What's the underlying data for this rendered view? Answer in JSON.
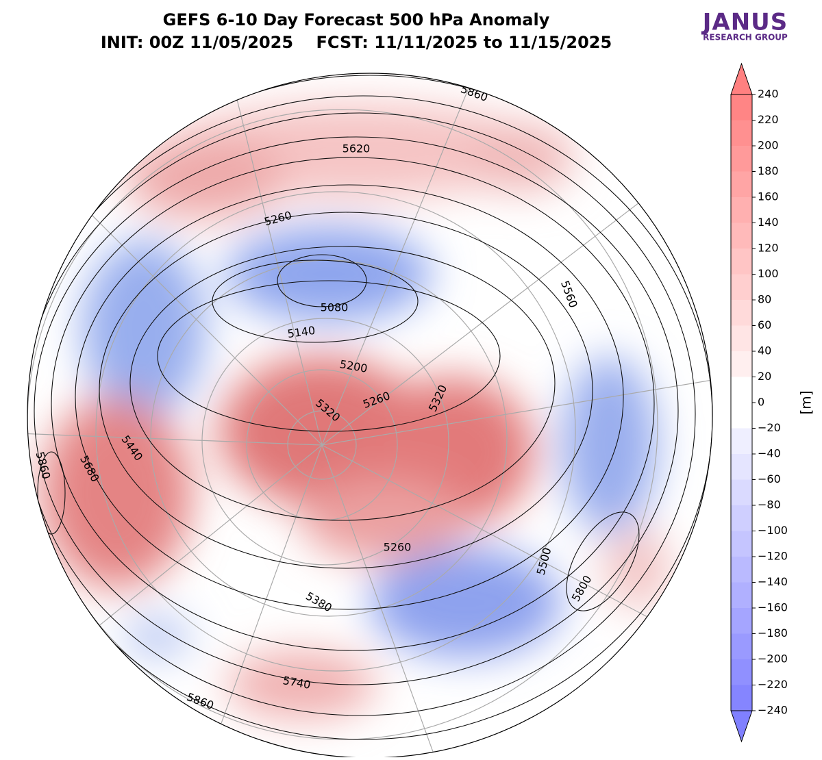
{
  "header": {
    "title": "GEFS 6-10 Day Forecast 500 hPa Anomaly",
    "subtitle": "INIT: 00Z 11/05/2025    FCST: 11/11/2025 to 11/15/2025"
  },
  "logo": {
    "name": "JANUS",
    "tagline": "RESEARCH GROUP"
  },
  "colorbar": {
    "unit": "[m]",
    "lim": [
      -240,
      240
    ],
    "ticks": [
      {
        "value": -240,
        "label": "−240"
      },
      {
        "value": -220,
        "label": "−220"
      },
      {
        "value": -200,
        "label": "−200"
      },
      {
        "value": -180,
        "label": "−180"
      },
      {
        "value": -160,
        "label": "−160"
      },
      {
        "value": -140,
        "label": "−140"
      },
      {
        "value": -120,
        "label": "−120"
      },
      {
        "value": -100,
        "label": "−100"
      },
      {
        "value": -80,
        "label": "−80"
      },
      {
        "value": -60,
        "label": "−60"
      },
      {
        "value": -40,
        "label": "−40"
      },
      {
        "value": -20,
        "label": "−20"
      },
      0,
      20,
      40,
      60,
      80,
      100,
      120,
      140,
      160,
      180,
      200,
      220,
      240
    ]
  },
  "contour_labels": [
    5860,
    5620,
    5260,
    5560,
    5080,
    5140,
    5200,
    5260,
    5320,
    5320,
    5440,
    5680,
    5860,
    5260,
    5500,
    5380,
    5800,
    5740,
    5860
  ]
}
